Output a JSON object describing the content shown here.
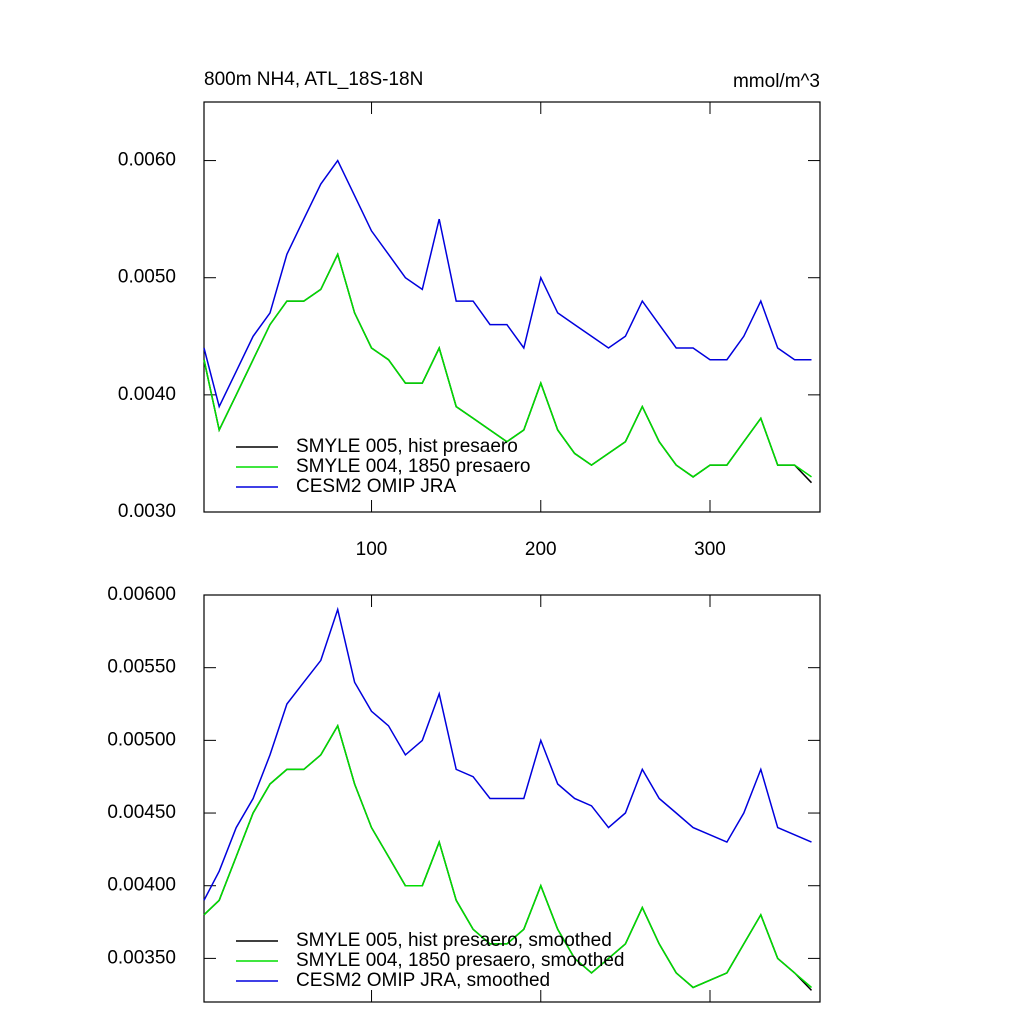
{
  "chart_data": [
    {
      "type": "line",
      "title": "800m NH4, ATL_18S-18N",
      "units_label": "mmol/m^3",
      "x": [
        1,
        10,
        20,
        30,
        40,
        50,
        60,
        70,
        80,
        90,
        100,
        110,
        120,
        130,
        140,
        150,
        160,
        170,
        180,
        190,
        200,
        210,
        220,
        230,
        240,
        250,
        260,
        270,
        280,
        290,
        300,
        310,
        320,
        330,
        340,
        350,
        360
      ],
      "xlim": [
        1,
        365
      ],
      "xticks": [
        100,
        200,
        300
      ],
      "ylim": [
        0.003,
        0.0065
      ],
      "yticks": [
        {
          "value": 0.003,
          "label": "0.0030"
        },
        {
          "value": 0.004,
          "label": "0.0040"
        },
        {
          "value": 0.005,
          "label": "0.0050"
        },
        {
          "value": 0.006,
          "label": "0.0060"
        }
      ],
      "legend_location": "lower left",
      "series": [
        {
          "name": "SMYLE 005, hist presaero",
          "color": "#000000",
          "values": [
            0.0043,
            0.0037,
            0.004,
            0.0043,
            0.0046,
            0.0048,
            0.0048,
            0.0049,
            0.0052,
            0.0047,
            0.0044,
            0.0043,
            0.0041,
            0.0041,
            0.0044,
            0.0039,
            0.0038,
            0.0037,
            0.0036,
            0.0037,
            0.0041,
            0.0037,
            0.0035,
            0.0034,
            0.0035,
            0.0036,
            0.0039,
            0.0036,
            0.0034,
            0.0033,
            0.0034,
            0.0034,
            0.0036,
            0.0038,
            0.0034,
            0.0034,
            0.00325
          ]
        },
        {
          "name": "SMYLE 004, 1850 presaero",
          "color": "#00dd00",
          "values": [
            0.0043,
            0.0037,
            0.004,
            0.0043,
            0.0046,
            0.0048,
            0.0048,
            0.0049,
            0.0052,
            0.0047,
            0.0044,
            0.0043,
            0.0041,
            0.0041,
            0.0044,
            0.0039,
            0.0038,
            0.0037,
            0.0036,
            0.0037,
            0.0041,
            0.0037,
            0.0035,
            0.0034,
            0.0035,
            0.0036,
            0.0039,
            0.0036,
            0.0034,
            0.0033,
            0.0034,
            0.0034,
            0.0036,
            0.0038,
            0.0034,
            0.0034,
            0.0033
          ]
        },
        {
          "name": "CESM2 OMIP JRA",
          "color": "#0000dd",
          "values": [
            0.0044,
            0.0039,
            0.0042,
            0.0045,
            0.0047,
            0.0052,
            0.0055,
            0.0058,
            0.006,
            0.0057,
            0.0054,
            0.0052,
            0.005,
            0.0049,
            0.0055,
            0.0048,
            0.0048,
            0.0046,
            0.0046,
            0.0044,
            0.005,
            0.0047,
            0.0046,
            0.0045,
            0.0044,
            0.0045,
            0.0048,
            0.0046,
            0.0044,
            0.0044,
            0.0043,
            0.0043,
            0.0045,
            0.0048,
            0.0044,
            0.0043,
            0.0043
          ]
        }
      ]
    },
    {
      "type": "line",
      "x": [
        1,
        10,
        20,
        30,
        40,
        50,
        60,
        70,
        80,
        90,
        100,
        110,
        120,
        130,
        140,
        150,
        160,
        170,
        180,
        190,
        200,
        210,
        220,
        230,
        240,
        250,
        260,
        270,
        280,
        290,
        300,
        310,
        320,
        330,
        340,
        350,
        360
      ],
      "xlim": [
        1,
        365
      ],
      "xticks": [
        100,
        200,
        300
      ],
      "ylim": [
        0.0032,
        0.006
      ],
      "yticks": [
        {
          "value": 0.0035,
          "label": "0.00350"
        },
        {
          "value": 0.004,
          "label": "0.00400"
        },
        {
          "value": 0.0045,
          "label": "0.00450"
        },
        {
          "value": 0.005,
          "label": "0.00500"
        },
        {
          "value": 0.0055,
          "label": "0.00550"
        },
        {
          "value": 0.006,
          "label": "0.00600"
        }
      ],
      "legend_location": "lower left",
      "series": [
        {
          "name": "SMYLE 005, hist presaero, smoothed",
          "color": "#000000",
          "values": [
            0.0038,
            0.0039,
            0.0042,
            0.0045,
            0.0047,
            0.0048,
            0.0048,
            0.0049,
            0.0051,
            0.0047,
            0.0044,
            0.0042,
            0.004,
            0.004,
            0.0043,
            0.0039,
            0.0037,
            0.0036,
            0.0036,
            0.0037,
            0.004,
            0.0037,
            0.0035,
            0.0034,
            0.0035,
            0.0036,
            0.00385,
            0.0036,
            0.0034,
            0.0033,
            0.00335,
            0.0034,
            0.0036,
            0.0038,
            0.0035,
            0.0034,
            0.00328
          ]
        },
        {
          "name": "SMYLE 004, 1850 presaero, smoothed",
          "color": "#00dd00",
          "values": [
            0.0038,
            0.0039,
            0.0042,
            0.0045,
            0.0047,
            0.0048,
            0.0048,
            0.0049,
            0.0051,
            0.0047,
            0.0044,
            0.0042,
            0.004,
            0.004,
            0.0043,
            0.0039,
            0.0037,
            0.0036,
            0.0036,
            0.0037,
            0.004,
            0.0037,
            0.0035,
            0.0034,
            0.0035,
            0.0036,
            0.00385,
            0.0036,
            0.0034,
            0.0033,
            0.00335,
            0.0034,
            0.0036,
            0.0038,
            0.0035,
            0.0034,
            0.0033
          ]
        },
        {
          "name": "CESM2 OMIP JRA, smoothed",
          "color": "#0000dd",
          "values": [
            0.0039,
            0.0041,
            0.0044,
            0.0046,
            0.0049,
            0.00525,
            0.0054,
            0.00555,
            0.0059,
            0.0054,
            0.0052,
            0.0051,
            0.0049,
            0.005,
            0.00532,
            0.0048,
            0.00475,
            0.0046,
            0.0046,
            0.0046,
            0.005,
            0.0047,
            0.0046,
            0.00455,
            0.0044,
            0.0045,
            0.0048,
            0.0046,
            0.0045,
            0.0044,
            0.00435,
            0.0043,
            0.0045,
            0.0048,
            0.0044,
            0.00435,
            0.0043
          ]
        }
      ]
    }
  ]
}
